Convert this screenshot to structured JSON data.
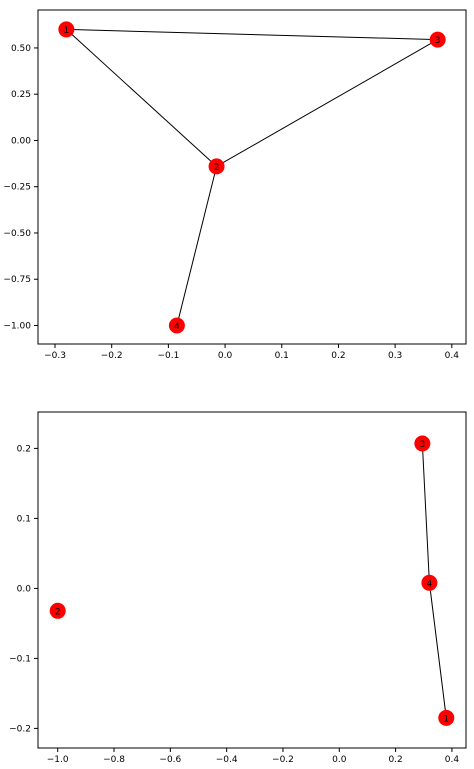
{
  "chart_data": [
    {
      "type": "scatter",
      "kind": "network-graph",
      "title": "",
      "xlabel": "",
      "ylabel": "",
      "xlim": [
        -0.33,
        0.425
      ],
      "ylim": [
        -1.1,
        0.705
      ],
      "xticks": [
        -0.3,
        -0.2,
        -0.1,
        0.0,
        0.1,
        0.2,
        0.3,
        0.4
      ],
      "xtick_labels": [
        "−0.3",
        "−0.2",
        "−0.1",
        "0.0",
        "0.1",
        "0.2",
        "0.3",
        "0.4"
      ],
      "yticks": [
        -1.0,
        -0.75,
        -0.5,
        -0.25,
        0.0,
        0.25,
        0.5
      ],
      "ytick_labels": [
        "−1.00",
        "−0.75",
        "−0.50",
        "−0.25",
        "0.00",
        "0.25",
        "0.50"
      ],
      "grid": false,
      "node_color": "#ff0000",
      "edge_color": "#000000",
      "nodes": [
        {
          "label": "1",
          "x": -0.28,
          "y": 0.6
        },
        {
          "label": "2",
          "x": -0.015,
          "y": -0.14
        },
        {
          "label": "3",
          "x": 0.375,
          "y": 0.545
        },
        {
          "label": "4",
          "x": -0.085,
          "y": -1.0
        }
      ],
      "edges": [
        [
          "1",
          "3"
        ],
        [
          "1",
          "2"
        ],
        [
          "2",
          "3"
        ],
        [
          "2",
          "4"
        ]
      ]
    },
    {
      "type": "scatter",
      "kind": "network-graph",
      "title": "",
      "xlabel": "",
      "ylabel": "",
      "xlim": [
        -1.07,
        0.45
      ],
      "ylim": [
        -0.228,
        0.252
      ],
      "xticks": [
        -1.0,
        -0.8,
        -0.6,
        -0.4,
        -0.2,
        0.0,
        0.2,
        0.4
      ],
      "xtick_labels": [
        "−1.0",
        "−0.8",
        "−0.6",
        "−0.4",
        "−0.2",
        "0.0",
        "0.2",
        "0.4"
      ],
      "yticks": [
        -0.2,
        -0.1,
        0.0,
        0.1,
        0.2
      ],
      "ytick_labels": [
        "−0.2",
        "−0.1",
        "0.0",
        "0.1",
        "0.2"
      ],
      "grid": false,
      "node_color": "#ff0000",
      "edge_color": "#000000",
      "nodes": [
        {
          "label": "1",
          "x": 0.38,
          "y": -0.185
        },
        {
          "label": "2",
          "x": -1.0,
          "y": -0.032
        },
        {
          "label": "3",
          "x": 0.295,
          "y": 0.207
        },
        {
          "label": "4",
          "x": 0.32,
          "y": 0.008
        }
      ],
      "edges": [
        [
          "3",
          "4"
        ],
        [
          "4",
          "1"
        ]
      ]
    }
  ]
}
